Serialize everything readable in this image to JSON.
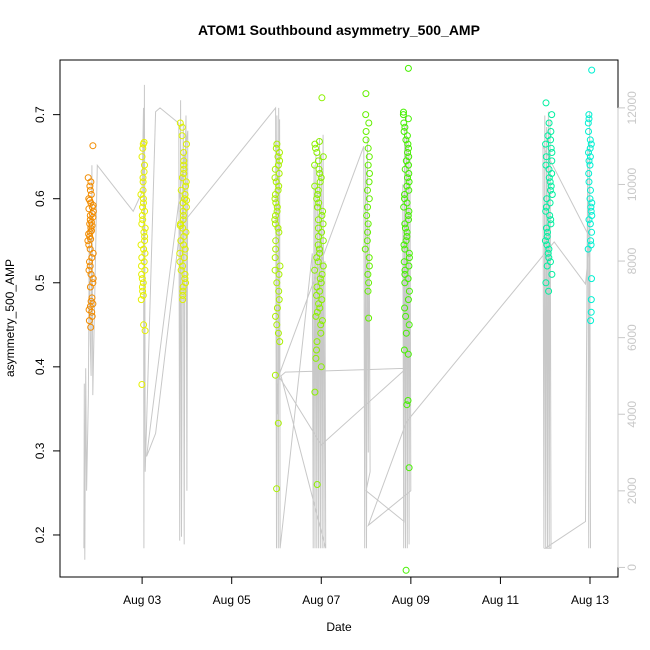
{
  "chart_data": {
    "type": "scatter",
    "title": "ATOM1 Southbound asymmetry_500_AMP",
    "xlabel": "Date",
    "ylabel": "asymmetry_500_AMP",
    "xlim": [
      "2015-08-01 04:00",
      "2015-08-13 15:00"
    ],
    "ylim": [
      0.15,
      0.765
    ],
    "y2lim": [
      -250,
      13250
    ],
    "x_ticks": [
      {
        "date": "2015-08-03",
        "label": "Aug 03"
      },
      {
        "date": "2015-08-05",
        "label": "Aug 05"
      },
      {
        "date": "2015-08-07",
        "label": "Aug 07"
      },
      {
        "date": "2015-08-09",
        "label": "Aug 09"
      },
      {
        "date": "2015-08-11",
        "label": "Aug 11"
      },
      {
        "date": "2015-08-13",
        "label": "Aug 13"
      }
    ],
    "y_ticks": [
      0.2,
      0.3,
      0.4,
      0.5,
      0.6,
      0.7
    ],
    "y2_ticks": [
      0,
      2000,
      4000,
      6000,
      8000,
      10000,
      12000
    ],
    "y2_color": "#c8c8c8",
    "grid": false,
    "legend": "none",
    "series": [
      {
        "color": "#f28c00",
        "date": "2015-08-01",
        "x_center": 1.85,
        "x_spread": 0.06,
        "values": [
          0.663,
          0.625,
          0.62,
          0.615,
          0.61,
          0.605,
          0.6,
          0.598,
          0.595,
          0.592,
          0.59,
          0.588,
          0.585,
          0.582,
          0.58,
          0.578,
          0.575,
          0.572,
          0.57,
          0.568,
          0.565,
          0.562,
          0.56,
          0.558,
          0.555,
          0.552,
          0.55,
          0.545,
          0.54,
          0.535,
          0.53,
          0.525,
          0.52,
          0.515,
          0.51,
          0.505,
          0.5,
          0.495,
          0.482,
          0.478,
          0.475,
          0.472,
          0.468,
          0.465,
          0.46,
          0.455,
          0.447
        ]
      },
      {
        "color": "#e6f000",
        "date": "2015-08-03",
        "x_center": 3.02,
        "x_spread": 0.05,
        "values": [
          0.667,
          0.665,
          0.66,
          0.65,
          0.64,
          0.632,
          0.625,
          0.62,
          0.61,
          0.605,
          0.6,
          0.595,
          0.59,
          0.585,
          0.58,
          0.575,
          0.57,
          0.565,
          0.56,
          0.555,
          0.55,
          0.545,
          0.54,
          0.535,
          0.53,
          0.525,
          0.52,
          0.515,
          0.51,
          0.505,
          0.5,
          0.495,
          0.49,
          0.485,
          0.48,
          0.45,
          0.443,
          0.379
        ]
      },
      {
        "color": "#dcf000",
        "date": "2015-08-03",
        "x_center": 3.92,
        "x_spread": 0.08,
        "values": [
          0.69,
          0.685,
          0.675,
          0.665,
          0.655,
          0.645,
          0.64,
          0.635,
          0.63,
          0.625,
          0.62,
          0.615,
          0.61,
          0.605,
          0.6,
          0.598,
          0.595,
          0.59,
          0.585,
          0.58,
          0.575,
          0.57,
          0.568,
          0.565,
          0.56,
          0.555,
          0.55,
          0.545,
          0.54,
          0.535,
          0.53,
          0.525,
          0.52,
          0.515,
          0.51,
          0.505,
          0.5,
          0.495,
          0.49,
          0.485,
          0.48
        ]
      },
      {
        "color": "#aaf000",
        "date": "2015-08-06",
        "x_center": 6.02,
        "x_spread": 0.06,
        "values": [
          0.665,
          0.66,
          0.655,
          0.65,
          0.645,
          0.64,
          0.635,
          0.63,
          0.625,
          0.62,
          0.615,
          0.61,
          0.605,
          0.6,
          0.595,
          0.59,
          0.585,
          0.58,
          0.575,
          0.57,
          0.565,
          0.56,
          0.55,
          0.54,
          0.53,
          0.52,
          0.515,
          0.51,
          0.5,
          0.49,
          0.48,
          0.47,
          0.46,
          0.45,
          0.44,
          0.43,
          0.39,
          0.333,
          0.255
        ]
      },
      {
        "color": "#8cf000",
        "date": "2015-08-06",
        "x_center": 6.95,
        "x_spread": 0.1,
        "values": [
          0.72,
          0.668,
          0.665,
          0.66,
          0.655,
          0.65,
          0.645,
          0.64,
          0.635,
          0.63,
          0.625,
          0.62,
          0.615,
          0.61,
          0.605,
          0.6,
          0.595,
          0.59,
          0.585,
          0.58,
          0.575,
          0.57,
          0.565,
          0.56,
          0.555,
          0.55,
          0.545,
          0.54,
          0.535,
          0.53,
          0.525,
          0.52,
          0.515,
          0.51,
          0.505,
          0.5,
          0.495,
          0.49,
          0.485,
          0.48,
          0.475,
          0.47,
          0.465,
          0.46,
          0.455,
          0.45,
          0.44,
          0.43,
          0.42,
          0.41,
          0.4,
          0.37,
          0.26
        ]
      },
      {
        "color": "#64f000",
        "date": "2015-08-08",
        "x_center": 8.03,
        "x_spread": 0.05,
        "values": [
          0.725,
          0.7,
          0.69,
          0.68,
          0.67,
          0.66,
          0.65,
          0.64,
          0.63,
          0.62,
          0.61,
          0.6,
          0.59,
          0.58,
          0.57,
          0.56,
          0.55,
          0.54,
          0.53,
          0.52,
          0.51,
          0.5,
          0.49,
          0.458
        ]
      },
      {
        "color": "#46f000",
        "date": "2015-08-08",
        "x_center": 8.9,
        "x_spread": 0.07,
        "values": [
          0.755,
          0.703,
          0.7,
          0.695,
          0.69,
          0.685,
          0.68,
          0.675,
          0.67,
          0.665,
          0.66,
          0.655,
          0.65,
          0.645,
          0.64,
          0.635,
          0.63,
          0.625,
          0.62,
          0.615,
          0.61,
          0.605,
          0.6,
          0.595,
          0.59,
          0.585,
          0.58,
          0.575,
          0.57,
          0.565,
          0.56,
          0.555,
          0.55,
          0.545,
          0.54,
          0.535,
          0.53,
          0.525,
          0.52,
          0.515,
          0.51,
          0.505,
          0.5,
          0.49,
          0.48,
          0.47,
          0.46,
          0.45,
          0.44,
          0.42,
          0.415,
          0.36,
          0.355,
          0.28,
          0.158
        ]
      },
      {
        "color": "#00f0a0",
        "date": "2015-08-12",
        "x_center": 12.08,
        "x_spread": 0.08,
        "values": [
          0.714,
          0.7,
          0.69,
          0.68,
          0.675,
          0.67,
          0.665,
          0.66,
          0.655,
          0.65,
          0.645,
          0.64,
          0.635,
          0.63,
          0.625,
          0.62,
          0.615,
          0.61,
          0.605,
          0.6,
          0.595,
          0.59,
          0.585,
          0.58,
          0.575,
          0.57,
          0.565,
          0.56,
          0.555,
          0.55,
          0.545,
          0.54,
          0.535,
          0.53,
          0.525,
          0.52,
          0.51,
          0.5,
          0.49
        ]
      },
      {
        "color": "#00f0d2",
        "date": "2015-08-13",
        "x_center": 13.0,
        "x_spread": 0.04,
        "values": [
          0.753,
          0.7,
          0.695,
          0.69,
          0.68,
          0.67,
          0.665,
          0.66,
          0.655,
          0.65,
          0.645,
          0.64,
          0.63,
          0.62,
          0.61,
          0.6,
          0.595,
          0.59,
          0.585,
          0.58,
          0.575,
          0.57,
          0.56,
          0.55,
          0.545,
          0.54,
          0.505,
          0.48,
          0.465,
          0.455
        ]
      }
    ],
    "overlay_series": {
      "color": "#c8c8c8",
      "axis": "right",
      "points": [
        [
          1.7,
          500
        ],
        [
          1.71,
          4800
        ],
        [
          1.72,
          200
        ],
        [
          1.73,
          2500
        ],
        [
          1.74,
          5200
        ],
        [
          1.76,
          2000
        ],
        [
          1.8,
          4500
        ],
        [
          1.82,
          9000
        ],
        [
          1.84,
          6000
        ],
        [
          1.86,
          5000
        ],
        [
          1.88,
          10500
        ],
        [
          1.9,
          4500
        ],
        [
          2.0,
          10500
        ],
        [
          2.8,
          9300
        ],
        [
          3.0,
          9800
        ],
        [
          3.03,
          12000
        ],
        [
          3.04,
          500
        ],
        [
          3.05,
          12600
        ],
        [
          3.06,
          8500
        ],
        [
          3.07,
          2500
        ],
        [
          3.3,
          11900
        ],
        [
          3.4,
          12000
        ],
        [
          3.82,
          11600
        ],
        [
          3.84,
          700
        ],
        [
          3.86,
          12200
        ],
        [
          3.88,
          800
        ],
        [
          3.9,
          9000
        ],
        [
          3.92,
          11600
        ],
        [
          3.94,
          600
        ],
        [
          3.96,
          10500
        ],
        [
          3.98,
          11800
        ],
        [
          4.0,
          2000
        ],
        [
          4.02,
          11400
        ],
        [
          3.1,
          2900
        ],
        [
          3.3,
          3500
        ],
        [
          3.85,
          8900
        ],
        [
          5.98,
          12000
        ],
        [
          6.0,
          500
        ],
        [
          6.01,
          11800
        ],
        [
          6.02,
          4000
        ],
        [
          6.03,
          4800
        ],
        [
          6.04,
          500
        ],
        [
          6.05,
          12000
        ],
        [
          6.06,
          4900
        ],
        [
          6.07,
          11700
        ],
        [
          6.08,
          500
        ],
        [
          6.8,
          8200
        ],
        [
          6.82,
          500
        ],
        [
          6.84,
          10500
        ],
        [
          6.86,
          500
        ],
        [
          6.88,
          10800
        ],
        [
          6.9,
          500
        ],
        [
          6.92,
          10000
        ],
        [
          6.94,
          500
        ],
        [
          6.96,
          11200
        ],
        [
          6.98,
          500
        ],
        [
          7.0,
          10800
        ],
        [
          7.02,
          500
        ],
        [
          7.04,
          11300
        ],
        [
          7.06,
          500
        ],
        [
          7.08,
          8000
        ],
        [
          7.1,
          500
        ],
        [
          6.1,
          5000
        ],
        [
          6.2,
          5100
        ],
        [
          8.9,
          5200
        ],
        [
          7.0,
          3200
        ],
        [
          6.05,
          5000
        ],
        [
          7.95,
          11000
        ],
        [
          7.97,
          500
        ],
        [
          7.99,
          10500
        ],
        [
          8.01,
          500
        ],
        [
          8.03,
          11200
        ],
        [
          8.05,
          3000
        ],
        [
          8.07,
          9000
        ],
        [
          8.09,
          2500
        ],
        [
          8.0,
          2000
        ],
        [
          8.85,
          1200
        ],
        [
          8.82,
          10000
        ],
        [
          8.84,
          500
        ],
        [
          8.86,
          11500
        ],
        [
          8.88,
          500
        ],
        [
          8.9,
          11800
        ],
        [
          8.92,
          500
        ],
        [
          8.94,
          11200
        ],
        [
          8.96,
          600
        ],
        [
          8.98,
          10800
        ],
        [
          9.0,
          2000
        ],
        [
          8.05,
          1100
        ],
        [
          8.9,
          3800
        ],
        [
          12.2,
          8500
        ],
        [
          12.9,
          7400
        ],
        [
          13.0,
          8600
        ],
        [
          11.95,
          11000
        ],
        [
          11.97,
          500
        ],
        [
          11.99,
          11800
        ],
        [
          12.01,
          500
        ],
        [
          12.03,
          11500
        ],
        [
          12.05,
          500
        ],
        [
          12.07,
          11900
        ],
        [
          12.09,
          500
        ],
        [
          12.11,
          11700
        ],
        [
          12.13,
          500
        ],
        [
          12.0,
          500
        ],
        [
          12.9,
          1200
        ],
        [
          12.95,
          11000
        ],
        [
          12.97,
          500
        ],
        [
          12.99,
          11900
        ],
        [
          13.01,
          500
        ]
      ]
    }
  }
}
